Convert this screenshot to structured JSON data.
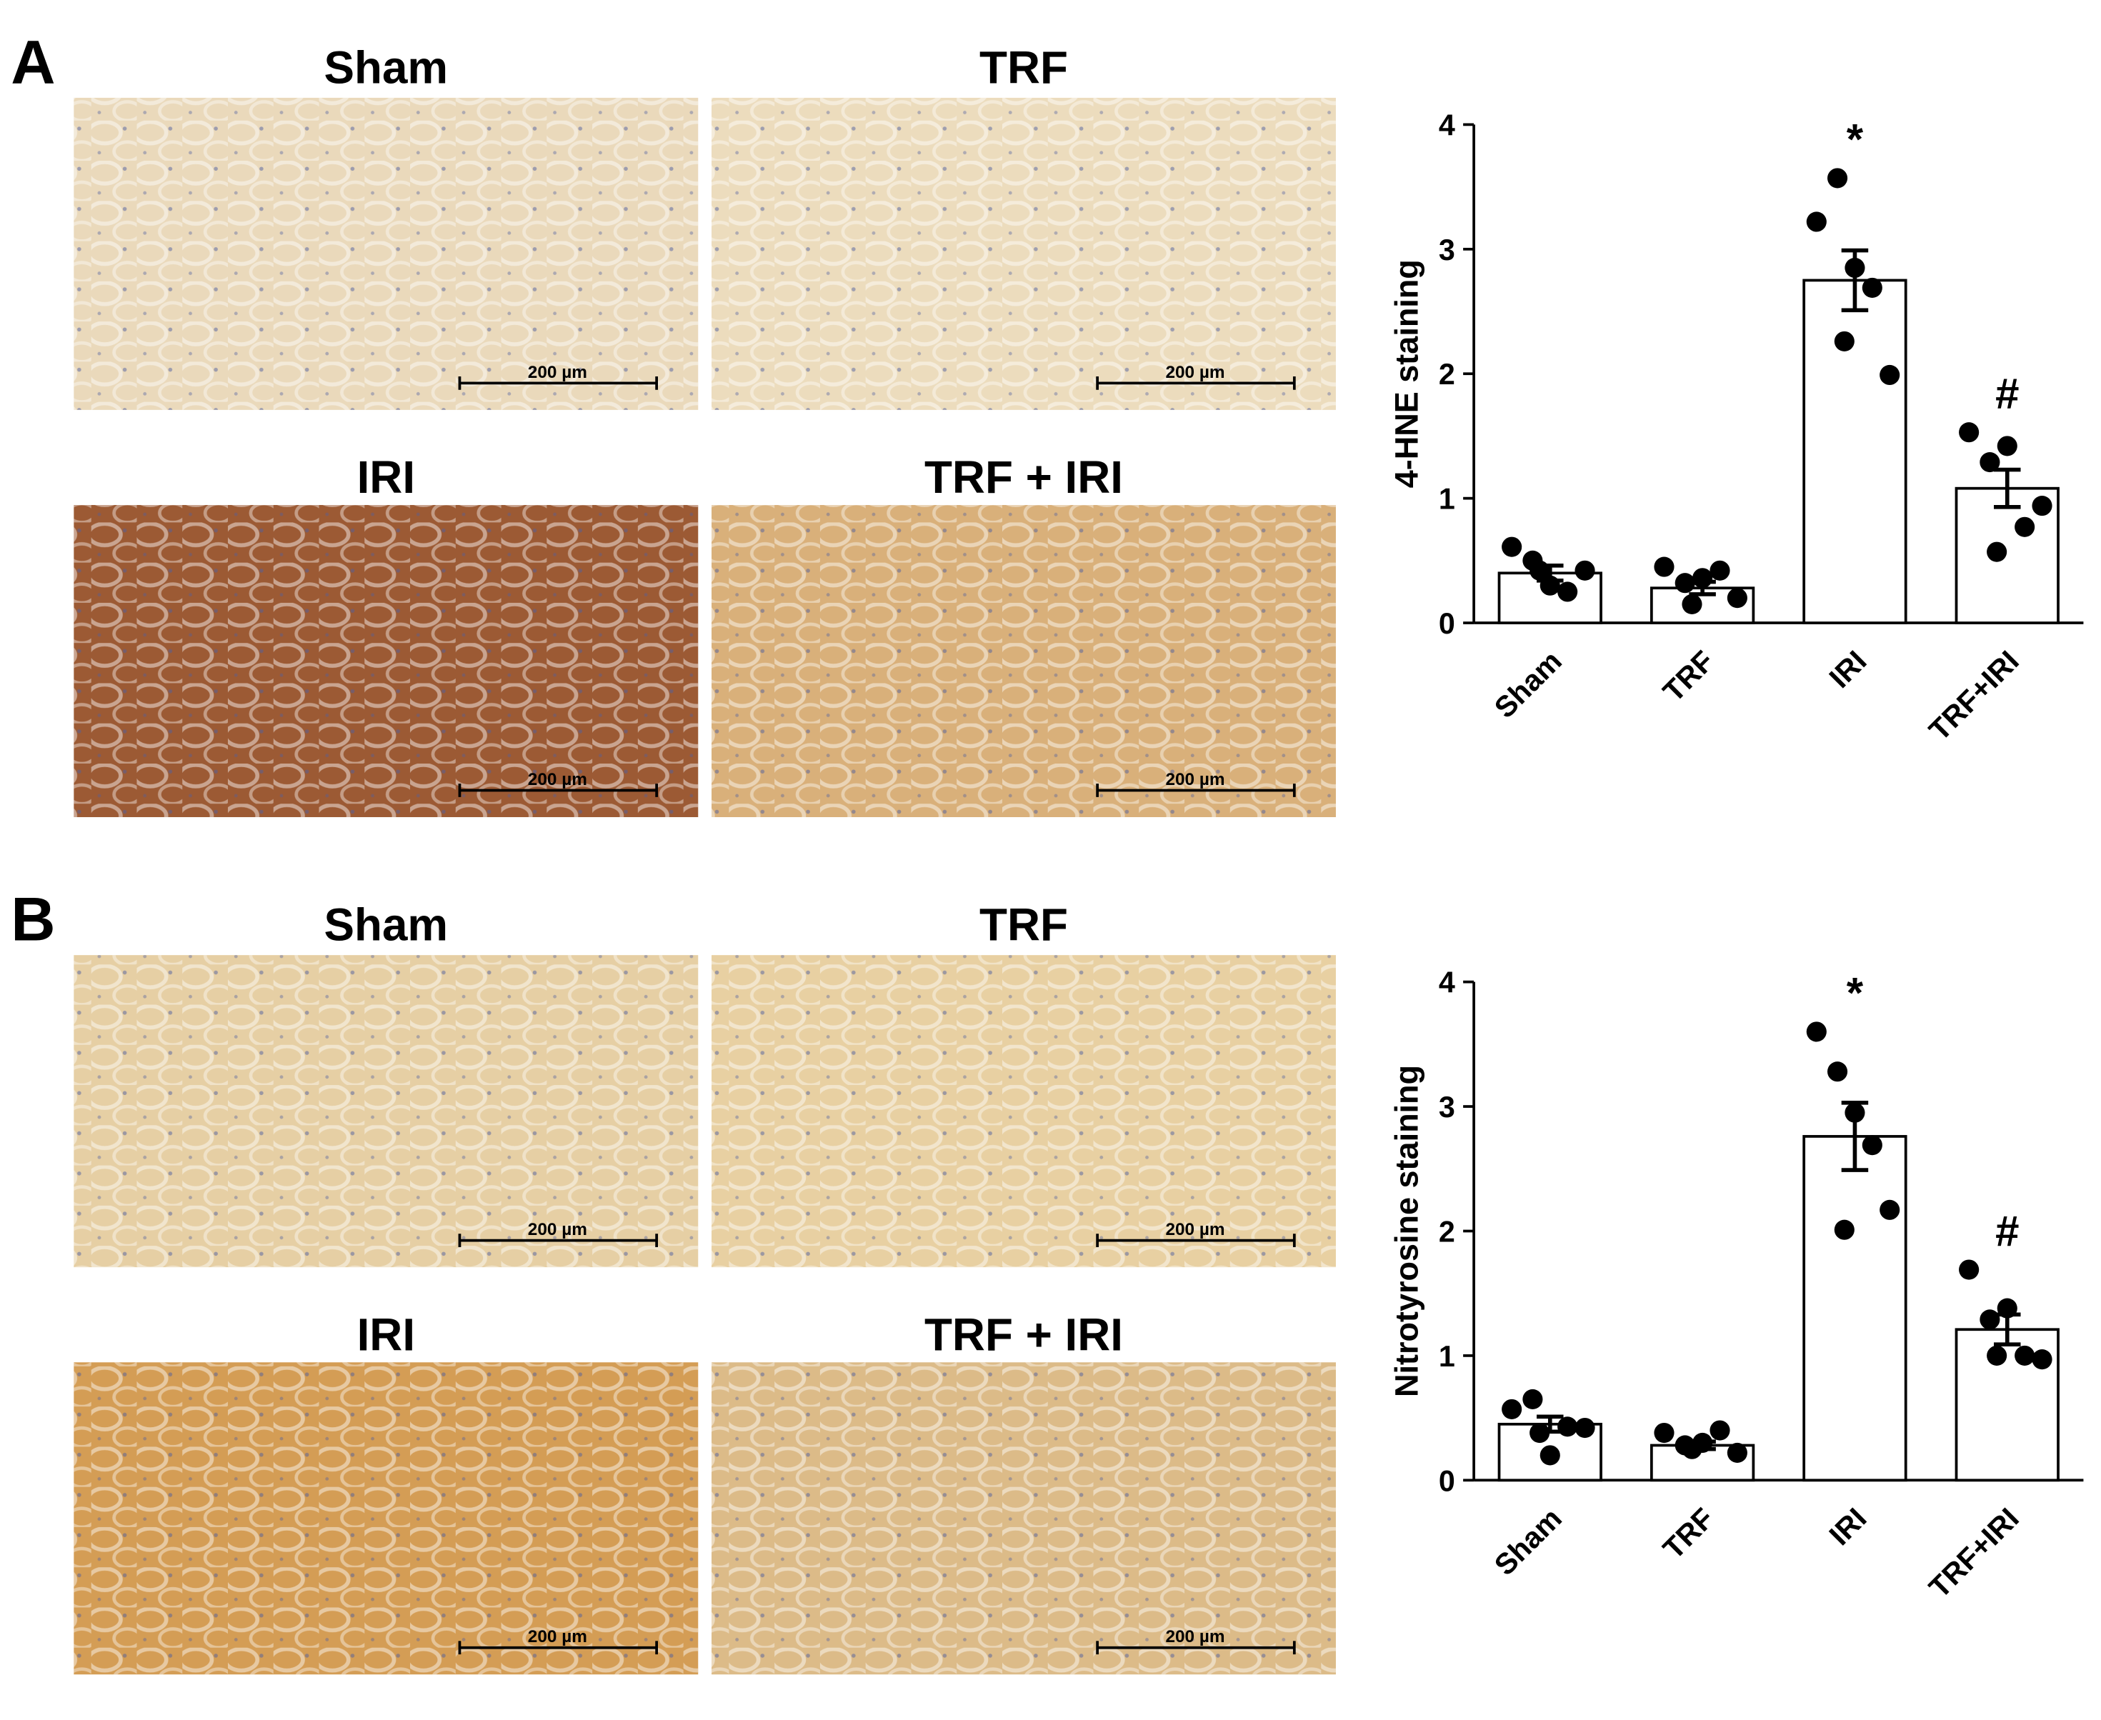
{
  "panels": [
    {
      "letter": "A",
      "images": [
        {
          "title": "Sham",
          "scale_bar": "200 µm",
          "stain": "#ead9bb"
        },
        {
          "title": "TRF",
          "scale_bar": "200 µm",
          "stain": "#ecdcbd"
        },
        {
          "title": "IRI",
          "scale_bar": "200 µm",
          "stain": "#9c5a34"
        },
        {
          "title": "TRF + IRI",
          "scale_bar": "200 µm",
          "stain": "#d9b07a"
        }
      ]
    },
    {
      "letter": "B",
      "images": [
        {
          "title": "Sham",
          "scale_bar": "200 µm",
          "stain": "#e6cfa4"
        },
        {
          "title": "TRF",
          "scale_bar": "200 µm",
          "stain": "#e8d0a2"
        },
        {
          "title": "IRI",
          "scale_bar": "200 µm",
          "stain": "#d49d55"
        },
        {
          "title": "TRF + IRI",
          "scale_bar": "200 µm",
          "stain": "#dcbb88"
        }
      ]
    }
  ],
  "chart_data": [
    {
      "type": "bar",
      "y_label": "4-HNE staining",
      "categories": [
        "Sham",
        "TRF",
        "IRI",
        "TRF+IRI"
      ],
      "values": [
        0.4,
        0.28,
        2.75,
        1.08
      ],
      "errors": [
        0.06,
        0.05,
        0.24,
        0.15
      ],
      "points": [
        [
          0.61,
          0.5,
          0.3,
          0.25,
          0.42,
          0.42
        ],
        [
          0.45,
          0.32,
          0.36,
          0.42,
          0.2,
          0.15
        ],
        [
          3.22,
          3.57,
          2.85,
          2.69,
          1.99,
          2.26
        ],
        [
          1.53,
          1.29,
          1.42,
          0.77,
          0.94,
          0.57
        ]
      ],
      "markers": [
        null,
        null,
        "*",
        "#"
      ],
      "color": "#ffffff",
      "point_color": "#000000",
      "ylim": [
        0,
        4
      ],
      "yticks": [
        0,
        1,
        2,
        3,
        4
      ]
    },
    {
      "type": "bar",
      "y_label": "Nitrotyrosine staining",
      "categories": [
        "Sham",
        "TRF",
        "IRI",
        "TRF+IRI"
      ],
      "values": [
        0.45,
        0.28,
        2.76,
        1.21
      ],
      "errors": [
        0.06,
        0.03,
        0.27,
        0.12
      ],
      "points": [
        [
          0.57,
          0.65,
          0.2,
          0.43,
          0.42,
          0.38
        ],
        [
          0.38,
          0.28,
          0.3,
          0.4,
          0.22,
          0.25
        ],
        [
          3.6,
          3.28,
          2.95,
          2.69,
          2.17,
          2.01
        ],
        [
          1.69,
          1.29,
          1.38,
          1.0,
          0.97,
          1.0
        ]
      ],
      "markers": [
        null,
        null,
        "*",
        "#"
      ],
      "color": "#ffffff",
      "point_color": "#000000",
      "ylim": [
        0,
        4
      ],
      "yticks": [
        0,
        1,
        2,
        3,
        4
      ]
    }
  ]
}
